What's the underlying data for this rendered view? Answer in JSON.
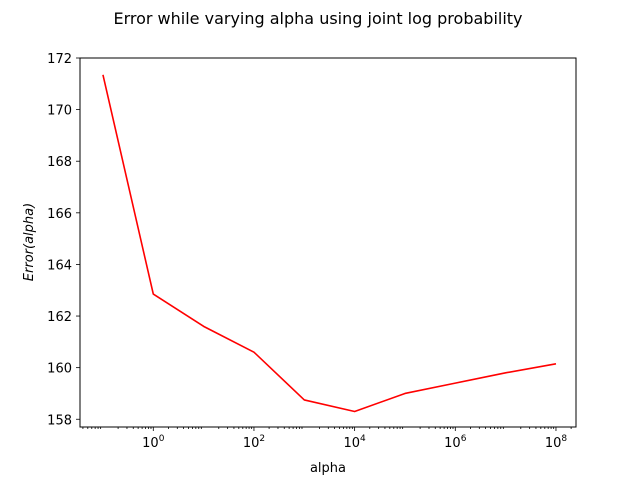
{
  "chart_data": {
    "type": "line",
    "title": "Error while varying alpha using joint log probability",
    "xlabel": "alpha",
    "ylabel": "Error(alpha)",
    "xscale": "log",
    "xlim": [
      0.035,
      250000000
    ],
    "ylim": [
      157.7,
      172
    ],
    "grid": false,
    "legend": "none",
    "line_color": "#ff0000",
    "x_ticks": [
      {
        "value": 1,
        "label_base": "10",
        "label_exp": "0"
      },
      {
        "value": 100,
        "label_base": "10",
        "label_exp": "2"
      },
      {
        "value": 10000,
        "label_base": "10",
        "label_exp": "4"
      },
      {
        "value": 1000000,
        "label_base": "10",
        "label_exp": "6"
      },
      {
        "value": 100000000,
        "label_base": "10",
        "label_exp": "8"
      }
    ],
    "y_ticks": [
      158,
      160,
      162,
      164,
      166,
      168,
      170,
      172
    ],
    "series": [
      {
        "x": [
          0.1,
          1,
          10,
          100,
          1000,
          10000,
          100000,
          1000000,
          10000000,
          100000000
        ],
        "y": [
          171.35,
          162.85,
          161.6,
          160.6,
          158.75,
          158.3,
          159.0,
          159.4,
          159.8,
          160.15
        ]
      }
    ]
  }
}
